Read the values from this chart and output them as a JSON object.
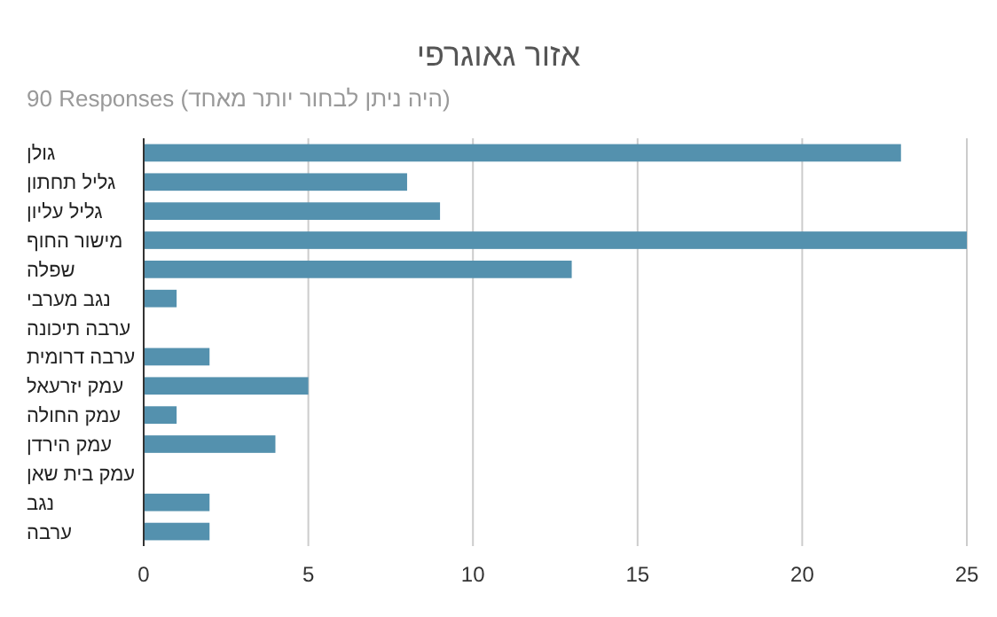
{
  "chart_data": {
    "type": "bar",
    "orientation": "horizontal",
    "title": "אזור גאוגרפי",
    "subtitle": "90 Responses (היה ניתן לבחור יותר מאחד)",
    "categories": [
      "גולן",
      "גליל תחתון",
      "גליל עליון",
      "מישור החוף",
      "שפלה",
      "נגב מערבי",
      "ערבה תיכונה",
      "ערבה דרומית",
      "עמק יזרעאל",
      "עמק החולה",
      "עמק הירדן",
      "עמק בית שאן",
      "נגב",
      "ערבה"
    ],
    "values": [
      23,
      8,
      9,
      25,
      13,
      1,
      0,
      2,
      5,
      1,
      4,
      0,
      2,
      2
    ],
    "color": "#5491ae",
    "xlim": [
      0,
      25
    ],
    "xticks": [
      0,
      5,
      10,
      15,
      20,
      25
    ],
    "grid": "x"
  }
}
